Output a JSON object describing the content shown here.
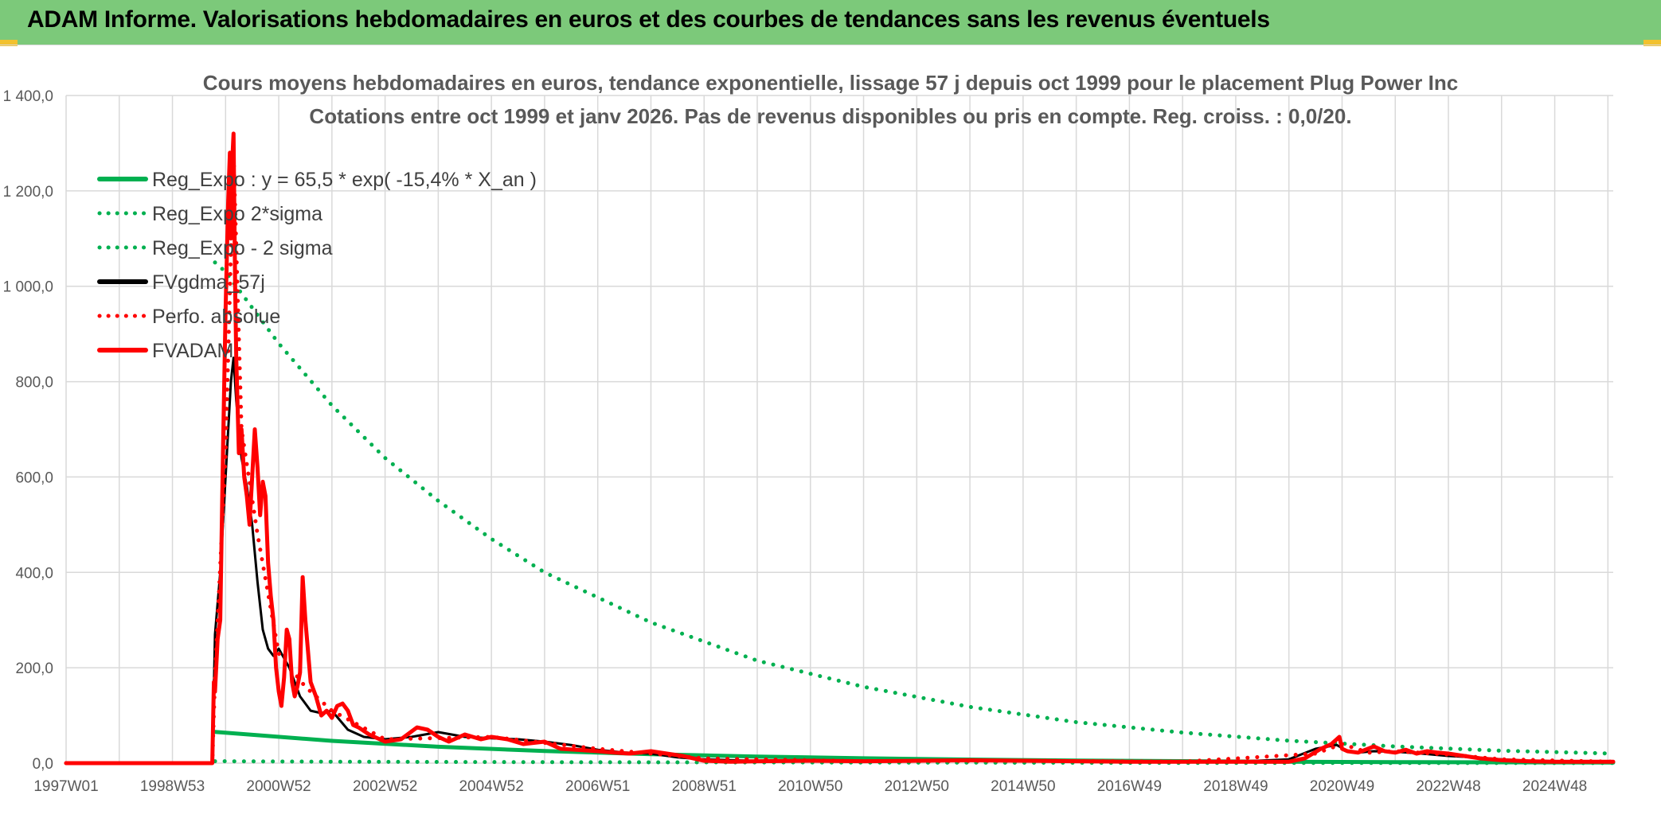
{
  "header": {
    "title": "ADAM Informe. Valorisations hebdomadaires en euros et des courbes de tendances sans les revenus éventuels"
  },
  "chart_data": {
    "type": "line",
    "title": "Cours moyens hebdomadaires en euros, tendance exponentielle, lissage 57 j depuis oct 1999 pour le placement Plug Power Inc",
    "subtitle": "Cotations entre oct 1999 et janv 2026. Pas de revenus disponibles ou pris en compte. Reg. croiss. : 0,0/20.",
    "xlabel": "",
    "ylabel": "",
    "ylim": [
      0,
      1400
    ],
    "xlim": [
      1997.0,
      2026.1
    ],
    "y_ticks": [
      "0,0",
      "200,0",
      "400,0",
      "600,0",
      "800,0",
      "1 000,0",
      "1 200,0",
      "1 400,0"
    ],
    "x_ticks": [
      {
        "label": "1997W01",
        "x": 1997.0
      },
      {
        "label": "1998W53",
        "x": 1999.0
      },
      {
        "label": "2000W52",
        "x": 2001.0
      },
      {
        "label": "2002W52",
        "x": 2003.0
      },
      {
        "label": "2004W52",
        "x": 2005.0
      },
      {
        "label": "2006W51",
        "x": 2007.0
      },
      {
        "label": "2008W51",
        "x": 2009.0
      },
      {
        "label": "2010W50",
        "x": 2011.0
      },
      {
        "label": "2012W50",
        "x": 2013.0
      },
      {
        "label": "2014W50",
        "x": 2015.0
      },
      {
        "label": "2016W49",
        "x": 2017.0
      },
      {
        "label": "2018W49",
        "x": 2019.0
      },
      {
        "label": "2020W49",
        "x": 2021.0
      },
      {
        "label": "2022W48",
        "x": 2023.0
      },
      {
        "label": "2024W48",
        "x": 2025.0
      }
    ],
    "grid": true,
    "legend_position": "top-left",
    "series": [
      {
        "name": "Reg_Expo : y = 65,5 * exp( -15,4% *  X_an )",
        "color": "#00b050",
        "style": "solid",
        "x": [
          1999.8,
          2002,
          2004,
          2006,
          2008,
          2010,
          2012,
          2014,
          2016,
          2018,
          2020,
          2022,
          2024,
          2026.1
        ],
        "y": [
          65.5,
          46.7,
          34.4,
          25.4,
          18.7,
          13.8,
          10.2,
          7.5,
          5.5,
          4.1,
          3.0,
          2.2,
          1.6,
          1.2
        ]
      },
      {
        "name": "Reg_Expo 2*sigma",
        "color": "#00b050",
        "style": "dotted",
        "x": [
          1999.8,
          2000,
          2001,
          2002,
          2003,
          2004,
          2005,
          2006,
          2008,
          2010,
          2012,
          2014,
          2016,
          2018,
          2020,
          2022,
          2024,
          2026.1
        ],
        "y": [
          1050,
          1030,
          880,
          750,
          640,
          550,
          470,
          400,
          295,
          215,
          160,
          118,
          86,
          64,
          47,
          35,
          26,
          20
        ]
      },
      {
        "name": "Reg_Expo - 2 sigma",
        "color": "#00b050",
        "style": "dotted",
        "x": [
          1999.8,
          2002,
          2006,
          2010,
          2014,
          2018,
          2022,
          2026.1
        ],
        "y": [
          4,
          3,
          2,
          1.5,
          1,
          0.5,
          0.3,
          0.2
        ]
      },
      {
        "name": "FVgdma_57j",
        "color": "#000000",
        "style": "solid",
        "x": [
          1997.0,
          1999.75,
          1999.8,
          1999.9,
          2000.0,
          2000.1,
          2000.15,
          2000.2,
          2000.3,
          2000.4,
          2000.5,
          2000.6,
          2000.7,
          2000.8,
          2000.9,
          2001.0,
          2001.2,
          2001.4,
          2001.6,
          2001.8,
          2002.0,
          2002.3,
          2002.6,
          2003.0,
          2003.5,
          2004.0,
          2004.5,
          2005.0,
          2005.5,
          2006.0,
          2006.5,
          2007.0,
          2007.5,
          2008.0,
          2008.5,
          2009.0,
          2009.5,
          2010.0,
          2011.0,
          2012.0,
          2013.0,
          2014.0,
          2015.0,
          2016.0,
          2017.0,
          2018.0,
          2019.0,
          2020.0,
          2020.5,
          2020.9,
          2021.1,
          2021.3,
          2021.6,
          2022.0,
          2022.5,
          2023.0,
          2023.5,
          2024.0,
          2024.5,
          2025.0,
          2026.1
        ],
        "y": [
          0,
          0,
          270,
          400,
          600,
          800,
          850,
          760,
          640,
          580,
          500,
          380,
          280,
          240,
          225,
          240,
          200,
          140,
          110,
          105,
          110,
          70,
          55,
          50,
          55,
          65,
          55,
          52,
          50,
          45,
          38,
          28,
          22,
          20,
          12,
          8,
          6,
          5,
          5,
          4,
          5,
          6,
          4,
          3,
          3,
          3,
          3,
          8,
          30,
          38,
          25,
          22,
          25,
          24,
          20,
          15,
          12,
          8,
          5,
          4,
          3
        ]
      },
      {
        "name": "Perfo. absolue",
        "color": "#ff0000",
        "style": "dotted",
        "x": [
          1997.0,
          1999.75,
          1999.8,
          2000.0,
          2000.15,
          2000.3,
          2000.6,
          2001.0,
          2001.5,
          2002.0,
          2003.0,
          2005.0,
          2007.0,
          2009.0,
          2012.0,
          2015.0,
          2018.0,
          2020.5,
          2021.0,
          2021.5,
          2022.0,
          2023.0,
          2024.0,
          2026.1
        ],
        "y": [
          0,
          0,
          180,
          650,
          1280,
          700,
          480,
          230,
          160,
          110,
          50,
          55,
          30,
          10,
          4,
          5,
          3,
          20,
          40,
          22,
          25,
          18,
          8,
          3
        ]
      },
      {
        "name": "FVADAM",
        "color": "#ff0000",
        "style": "solid",
        "x": [
          1997.0,
          1999.75,
          1999.78,
          1999.8,
          1999.85,
          1999.9,
          1999.95,
          2000.0,
          2000.05,
          2000.08,
          2000.1,
          2000.12,
          2000.15,
          2000.18,
          2000.2,
          2000.25,
          2000.3,
          2000.35,
          2000.4,
          2000.45,
          2000.5,
          2000.55,
          2000.6,
          2000.65,
          2000.7,
          2000.75,
          2000.8,
          2000.85,
          2000.9,
          2000.95,
          2001.0,
          2001.05,
          2001.1,
          2001.15,
          2001.2,
          2001.25,
          2001.3,
          2001.35,
          2001.4,
          2001.45,
          2001.5,
          2001.6,
          2001.7,
          2001.8,
          2001.9,
          2002.0,
          2002.1,
          2002.2,
          2002.3,
          2002.4,
          2002.5,
          2002.7,
          2003.0,
          2003.3,
          2003.6,
          2003.8,
          2004.0,
          2004.2,
          2004.5,
          2004.8,
          2005.0,
          2005.3,
          2005.6,
          2006.0,
          2006.3,
          2006.6,
          2007.0,
          2007.3,
          2007.6,
          2008.0,
          2008.3,
          2008.6,
          2009.0,
          2009.5,
          2010.0,
          2011.0,
          2012.0,
          2013.0,
          2014.0,
          2015.0,
          2016.0,
          2017.0,
          2018.0,
          2019.0,
          2020.0,
          2020.3,
          2020.6,
          2020.8,
          2020.95,
          2021.0,
          2021.1,
          2021.3,
          2021.6,
          2021.8,
          2022.0,
          2022.2,
          2022.4,
          2022.6,
          2022.8,
          2023.0,
          2023.3,
          2023.6,
          2024.0,
          2024.5,
          2025.0,
          2025.5,
          2026.1
        ],
        "y": [
          0,
          0,
          170,
          150,
          260,
          300,
          650,
          950,
          1180,
          1280,
          1100,
          1250,
          1320,
          1000,
          850,
          650,
          700,
          600,
          560,
          500,
          600,
          700,
          620,
          520,
          590,
          560,
          420,
          350,
          300,
          200,
          150,
          120,
          180,
          280,
          260,
          170,
          140,
          160,
          190,
          390,
          300,
          170,
          140,
          100,
          110,
          95,
          120,
          125,
          110,
          80,
          75,
          60,
          45,
          50,
          75,
          70,
          55,
          45,
          60,
          50,
          55,
          50,
          40,
          45,
          30,
          28,
          25,
          22,
          20,
          25,
          20,
          15,
          5,
          3,
          4,
          5,
          4,
          5,
          6,
          5,
          4,
          3,
          3,
          3,
          3,
          10,
          30,
          40,
          55,
          30,
          25,
          22,
          35,
          25,
          22,
          28,
          20,
          25,
          22,
          20,
          15,
          10,
          6,
          4,
          3,
          3,
          3
        ]
      }
    ]
  }
}
